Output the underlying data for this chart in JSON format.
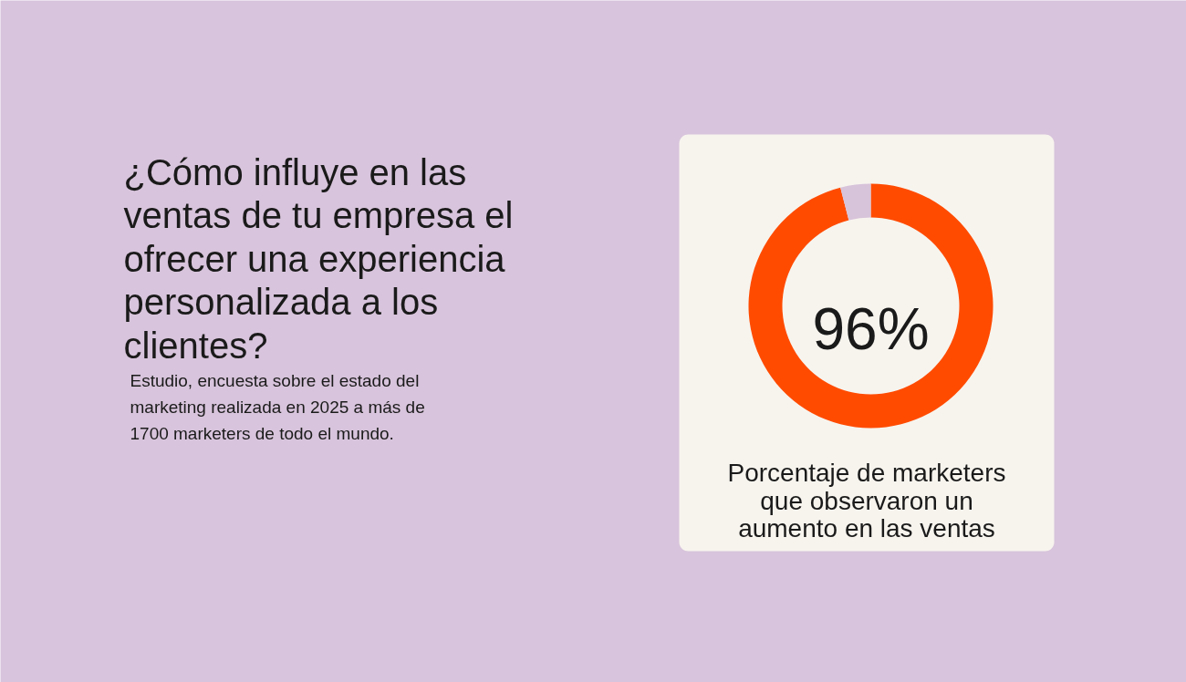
{
  "chart_data": {
    "type": "donut",
    "title": "¿Cómo influye en las ventas de tu empresa el ofrecer una experiencia personalizada a los clientes?",
    "subtitle": "Estudio, encuesta sobre el estado del marketing realizada en 2025 a más de 1700 marketers de todo el mundo.",
    "categories": [
      null,
      null
    ],
    "values": [
      96,
      4
    ],
    "colors": [
      "#ff4b00",
      "#d7c3da"
    ],
    "value_labels": [
      "96%",
      null
    ],
    "annotations": [
      "Porcentaje de marketers que observaron un aumento en las ventas"
    ]
  }
}
